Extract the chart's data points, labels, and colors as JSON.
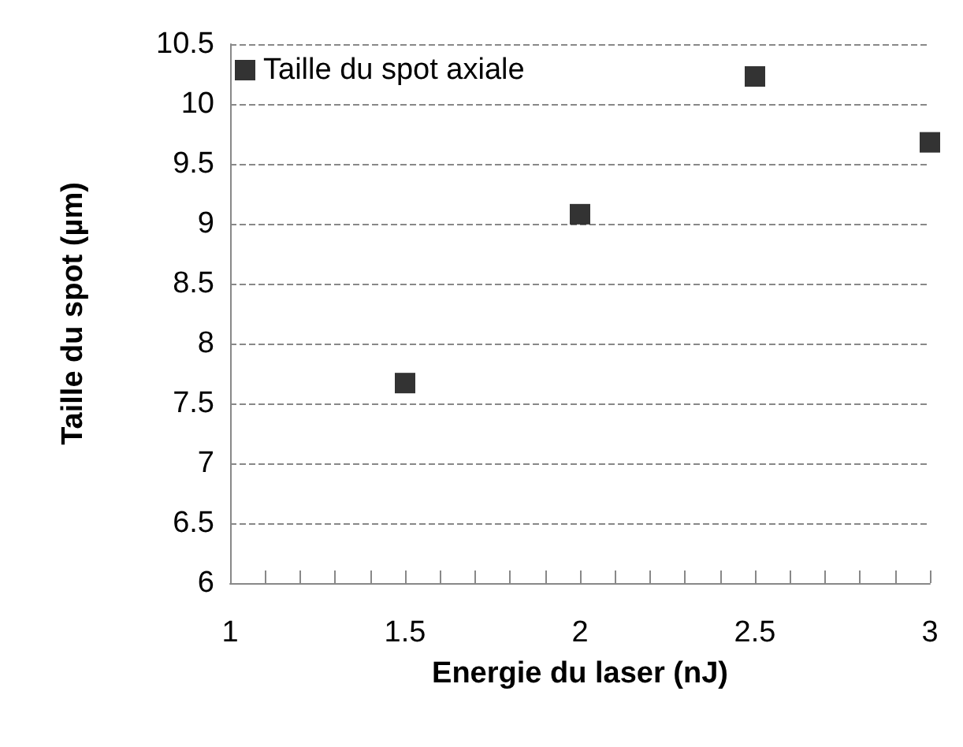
{
  "chart_data": {
    "type": "scatter",
    "xlabel": "Energie du laser (nJ)",
    "ylabel": "Taille du spot (µm)",
    "x": [
      1.5,
      2,
      2.5,
      3
    ],
    "series": [
      {
        "name": "Taille du spot axiale",
        "color": "#000000",
        "values": [
          7.67,
          9.08,
          10.23,
          9.68
        ]
      }
    ],
    "xlim": [
      1,
      3
    ],
    "xticks": [
      1,
      1.5,
      2,
      2.5,
      3
    ],
    "ylim": [
      6,
      10.5
    ],
    "yticks": [
      6,
      6.5,
      7,
      7.5,
      8,
      8.5,
      9,
      9.5,
      10,
      10.5
    ],
    "grid": "y",
    "legend": "top left",
    "marker": "square"
  }
}
